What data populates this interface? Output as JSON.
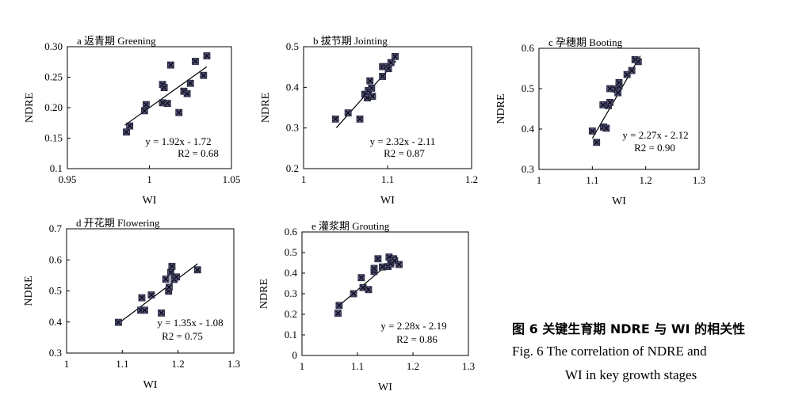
{
  "caption": {
    "zh": "图 6   关键生育期 NDRE 与 WI 的相关性",
    "en_line1": "Fig. 6   The correlation of NDRE and",
    "en_line2": "WI in key growth stages"
  },
  "chart_data": [
    {
      "type": "scatter",
      "title": "a 返青期 Greening",
      "xlabel": "WI",
      "ylabel": "NDRE",
      "xlim": [
        0.95,
        1.05
      ],
      "ylim": [
        0.1,
        0.3
      ],
      "xticks": [
        "0.95",
        "1",
        "1.05"
      ],
      "yticks": [
        "0.1",
        "0.15",
        "0.20",
        "0.25",
        "0.30"
      ],
      "equation": "y = 1.92x - 1.72",
      "r2": "R2 = 0.68",
      "points": [
        [
          0.986,
          0.16
        ],
        [
          0.988,
          0.17
        ],
        [
          0.997,
          0.195
        ],
        [
          0.998,
          0.205
        ],
        [
          1.008,
          0.208
        ],
        [
          1.008,
          0.238
        ],
        [
          1.009,
          0.233
        ],
        [
          1.011,
          0.207
        ],
        [
          1.013,
          0.27
        ],
        [
          1.018,
          0.192
        ],
        [
          1.021,
          0.227
        ],
        [
          1.023,
          0.223
        ],
        [
          1.025,
          0.24
        ],
        [
          1.028,
          0.276
        ],
        [
          1.033,
          0.253
        ],
        [
          1.035,
          0.285
        ]
      ],
      "trendline": {
        "slope": 1.92,
        "intercept": -1.72,
        "x_range": [
          0.985,
          1.035
        ]
      }
    },
    {
      "type": "scatter",
      "title": "b 拔节期 Jointing",
      "xlabel": "WI",
      "ylabel": "NDRE",
      "xlim": [
        1.0,
        1.2
      ],
      "ylim": [
        0.2,
        0.5
      ],
      "xticks": [
        "1",
        "1.1",
        "1.2"
      ],
      "yticks": [
        "0.2",
        "0.3",
        "0.4",
        "0.5"
      ],
      "equation": "y = 2.32x - 2.11",
      "r2": "R2 = 0.87",
      "points": [
        [
          1.038,
          0.322
        ],
        [
          1.053,
          0.337
        ],
        [
          1.067,
          0.322
        ],
        [
          1.073,
          0.383
        ],
        [
          1.076,
          0.374
        ],
        [
          1.077,
          0.392
        ],
        [
          1.079,
          0.416
        ],
        [
          1.081,
          0.398
        ],
        [
          1.082,
          0.378
        ],
        [
          1.094,
          0.451
        ],
        [
          1.094,
          0.427
        ],
        [
          1.098,
          0.451
        ],
        [
          1.101,
          0.446
        ],
        [
          1.104,
          0.461
        ],
        [
          1.109,
          0.476
        ]
      ],
      "trendline": {
        "slope": 2.32,
        "intercept": -2.11,
        "x_range": [
          1.039,
          1.11
        ]
      }
    },
    {
      "type": "scatter",
      "title": "c 孕穗期 Booting",
      "xlabel": "WI",
      "ylabel": "NDRE",
      "xlim": [
        1.0,
        1.3
      ],
      "ylim": [
        0.3,
        0.6
      ],
      "xticks": [
        "1",
        "1.1",
        "1.2",
        "1.3"
      ],
      "yticks": [
        "0.3",
        "0.4",
        "0.5",
        "0.6"
      ],
      "equation": "y = 2.27x - 2.12",
      "r2": "R2 = 0.90",
      "points": [
        [
          1.1,
          0.395
        ],
        [
          1.108,
          0.367
        ],
        [
          1.12,
          0.46
        ],
        [
          1.121,
          0.405
        ],
        [
          1.126,
          0.402
        ],
        [
          1.13,
          0.458
        ],
        [
          1.133,
          0.466
        ],
        [
          1.133,
          0.5
        ],
        [
          1.144,
          0.499
        ],
        [
          1.148,
          0.49
        ],
        [
          1.15,
          0.506
        ],
        [
          1.15,
          0.515
        ],
        [
          1.165,
          0.535
        ],
        [
          1.174,
          0.545
        ],
        [
          1.18,
          0.572
        ],
        [
          1.186,
          0.567
        ]
      ],
      "trendline": {
        "slope": 2.27,
        "intercept": -2.12,
        "x_range": [
          1.1,
          1.19
        ]
      }
    },
    {
      "type": "scatter",
      "title": "d 开花期 Flowering",
      "xlabel": "WI",
      "ylabel": "NDRE",
      "xlim": [
        1.0,
        1.3
      ],
      "ylim": [
        0.3,
        0.7
      ],
      "xticks": [
        "1",
        "1.1",
        "1.2",
        "1.3"
      ],
      "yticks": [
        "0.3",
        "0.4",
        "0.5",
        "0.6",
        "0.7"
      ],
      "equation": "y = 1.35x - 1.08",
      "r2": "R2 = 0.75",
      "points": [
        [
          1.093,
          0.399
        ],
        [
          1.133,
          0.438
        ],
        [
          1.135,
          0.478
        ],
        [
          1.14,
          0.438
        ],
        [
          1.152,
          0.487
        ],
        [
          1.17,
          0.429
        ],
        [
          1.178,
          0.538
        ],
        [
          1.183,
          0.499
        ],
        [
          1.184,
          0.512
        ],
        [
          1.187,
          0.56
        ],
        [
          1.189,
          0.579
        ],
        [
          1.193,
          0.537
        ],
        [
          1.197,
          0.545
        ],
        [
          1.235,
          0.568
        ]
      ],
      "trendline": {
        "slope": 1.35,
        "intercept": -1.08,
        "x_range": [
          1.093,
          1.235
        ]
      }
    },
    {
      "type": "scatter",
      "title": "e 灌浆期 Grouting",
      "xlabel": "WI",
      "ylabel": "NDRE",
      "xlim": [
        1.0,
        1.3
      ],
      "ylim": [
        0.0,
        0.6
      ],
      "xticks": [
        "1",
        "1.1",
        "1.2",
        "1.3"
      ],
      "yticks": [
        "0",
        "0.1",
        "0.2",
        "0.3",
        "0.4",
        "0.5",
        "0.6"
      ],
      "equation": "y = 2.28x - 2.19",
      "r2": "R2 = 0.86",
      "points": [
        [
          1.065,
          0.205
        ],
        [
          1.067,
          0.243
        ],
        [
          1.093,
          0.3
        ],
        [
          1.107,
          0.378
        ],
        [
          1.11,
          0.33
        ],
        [
          1.12,
          0.32
        ],
        [
          1.13,
          0.408
        ],
        [
          1.13,
          0.423
        ],
        [
          1.137,
          0.47
        ],
        [
          1.145,
          0.43
        ],
        [
          1.155,
          0.432
        ],
        [
          1.157,
          0.478
        ],
        [
          1.16,
          0.445
        ],
        [
          1.165,
          0.47
        ],
        [
          1.167,
          0.46
        ],
        [
          1.175,
          0.442
        ]
      ],
      "trendline": {
        "slope": 2.28,
        "intercept": -2.19,
        "x_range": [
          1.065,
          1.17
        ]
      }
    }
  ]
}
